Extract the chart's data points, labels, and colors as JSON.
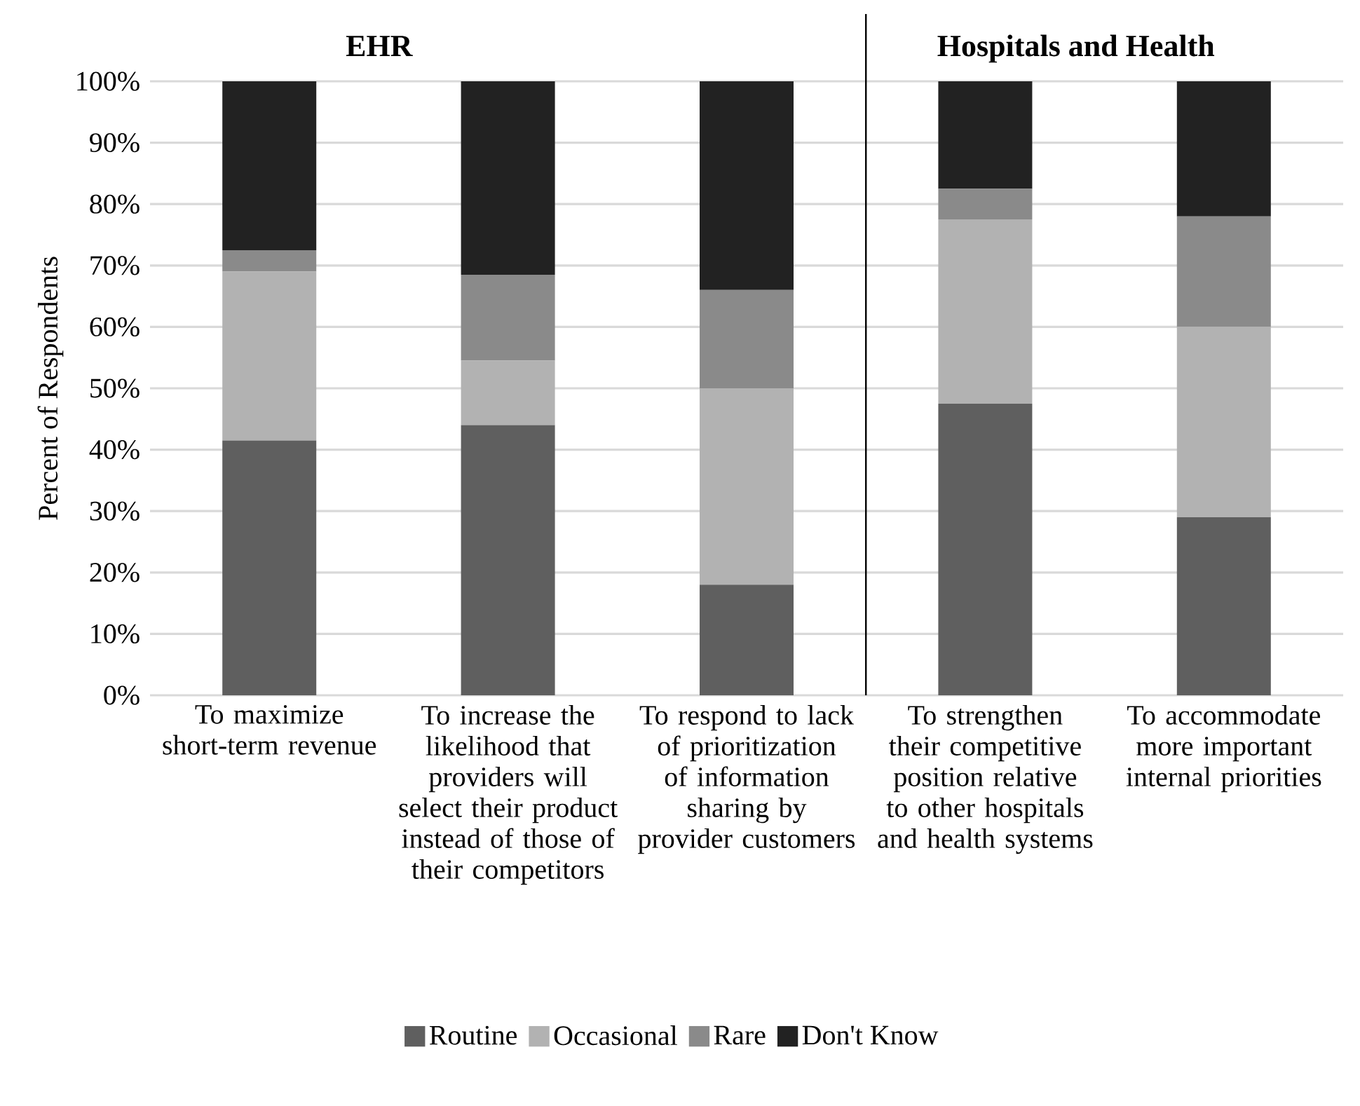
{
  "chart_data": [
    {
      "type": "bar",
      "stacked": true,
      "title": "EHR",
      "ylabel": "Percent of Respondents",
      "categories": [
        "To maximize short-term revenue",
        "To increase the likelihood that providers will select their product instead of those of their competitors",
        "To respond to lack of prioritization of information sharing by provider customers"
      ],
      "series": [
        {
          "name": "Routine",
          "color": "#5f5f5f",
          "values": [
            41.5,
            44,
            18
          ]
        },
        {
          "name": "Occasional",
          "color": "#b2b2b2",
          "values": [
            27.5,
            10.5,
            32
          ]
        },
        {
          "name": "Rare",
          "color": "#8a8a8a",
          "values": [
            3.5,
            14,
            16
          ]
        },
        {
          "name": "Don't Know",
          "color": "#222222",
          "values": [
            27.5,
            31.5,
            34
          ]
        }
      ],
      "ylim": [
        0,
        100
      ],
      "yticks": [
        {
          "value": 0,
          "label": "0%"
        },
        {
          "value": 10,
          "label": "10%"
        },
        {
          "value": 20,
          "label": "20%"
        },
        {
          "value": 30,
          "label": "30%"
        },
        {
          "value": 40,
          "label": "40%"
        },
        {
          "value": 50,
          "label": "50%"
        },
        {
          "value": 60,
          "label": "60%"
        },
        {
          "value": 70,
          "label": "70%"
        },
        {
          "value": 80,
          "label": "80%"
        },
        {
          "value": 90,
          "label": "90%"
        },
        {
          "value": 100,
          "label": "100%"
        }
      ],
      "grid": "y",
      "legend": "bottom"
    },
    {
      "type": "bar",
      "stacked": true,
      "title": "Hospitals and Health",
      "categories": [
        "To strengthen their competitive position relative to other hospitals and health systems",
        "To accommodate more important internal priorities"
      ],
      "series": [
        {
          "color": "#5f5f5f",
          "values": [
            47.5,
            29
          ]
        },
        {
          "color": "#b2b2b2",
          "values": [
            30,
            31
          ]
        },
        {
          "color": "#8a8a8a",
          "values": [
            5,
            18
          ]
        },
        {
          "color": "#222222",
          "values": [
            17.5,
            22
          ]
        }
      ],
      "ylim": [
        0,
        100
      ],
      "yticks": [
        0,
        10,
        20,
        30,
        40,
        50,
        60,
        70,
        80,
        90,
        100
      ],
      "tick_labels": "x",
      "grid": "y"
    }
  ]
}
